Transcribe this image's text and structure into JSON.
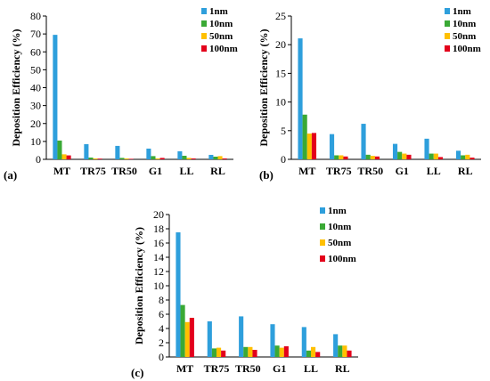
{
  "colors": {
    "1nm": "#2E9FDC",
    "10nm": "#3AA935",
    "50nm": "#FFC000",
    "100nm": "#E3001B"
  },
  "chart_data": [
    {
      "type": "bar",
      "panel_label": "(a)",
      "ylabel": "Deposition Efficiency (%)",
      "ylim": [
        0,
        80
      ],
      "yticks": [
        "0",
        "10",
        "20",
        "30",
        "40",
        "50",
        "60",
        "70",
        "80"
      ],
      "categories": [
        "MT",
        "TR75",
        "TR50",
        "G1",
        "LL",
        "RL"
      ],
      "legend_position": "top-right",
      "series": [
        {
          "name": "1nm",
          "values": [
            69.5,
            8.5,
            7.5,
            6.0,
            4.5,
            2.5
          ]
        },
        {
          "name": "10nm",
          "values": [
            10.5,
            1.0,
            0.8,
            1.8,
            2.0,
            1.5
          ]
        },
        {
          "name": "50nm",
          "values": [
            2.8,
            0.5,
            0.5,
            0.5,
            0.8,
            1.8
          ]
        },
        {
          "name": "100nm",
          "values": [
            2.2,
            0.4,
            0.3,
            0.8,
            0.5,
            0.5
          ]
        }
      ]
    },
    {
      "type": "bar",
      "panel_label": "(b)",
      "ylabel": "Deposition Efficiency (%)",
      "ylim": [
        0,
        25
      ],
      "yticks": [
        "0",
        "5",
        "10",
        "15",
        "20",
        "25"
      ],
      "categories": [
        "MT",
        "TR75",
        "TR50",
        "G1",
        "LL",
        "RL"
      ],
      "legend_position": "top-right",
      "series": [
        {
          "name": "1nm",
          "values": [
            21.1,
            4.4,
            6.2,
            2.7,
            3.6,
            1.5
          ]
        },
        {
          "name": "10nm",
          "values": [
            7.8,
            0.7,
            0.8,
            1.3,
            1.0,
            0.7
          ]
        },
        {
          "name": "50nm",
          "values": [
            4.5,
            0.7,
            0.6,
            1.0,
            1.0,
            0.8
          ]
        },
        {
          "name": "100nm",
          "values": [
            4.6,
            0.5,
            0.5,
            0.8,
            0.4,
            0.3
          ]
        }
      ]
    },
    {
      "type": "bar",
      "panel_label": "(c)",
      "ylabel": "Deposition Efficiency (%)",
      "ylim": [
        0,
        20
      ],
      "yticks": [
        "0",
        "2",
        "4",
        "6",
        "8",
        "10",
        "12",
        "14",
        "16",
        "18",
        "20"
      ],
      "categories": [
        "MT",
        "TR75",
        "TR50",
        "G1",
        "LL",
        "RL"
      ],
      "legend_position": "top-right",
      "series": [
        {
          "name": "1nm",
          "values": [
            17.5,
            5.0,
            5.7,
            4.6,
            4.2,
            3.2
          ]
        },
        {
          "name": "10nm",
          "values": [
            7.3,
            1.2,
            1.4,
            1.6,
            0.9,
            1.6
          ]
        },
        {
          "name": "50nm",
          "values": [
            4.9,
            1.3,
            1.4,
            1.3,
            1.4,
            1.6
          ]
        },
        {
          "name": "100nm",
          "values": [
            5.5,
            0.9,
            1.0,
            1.5,
            0.7,
            0.9
          ]
        }
      ]
    }
  ]
}
